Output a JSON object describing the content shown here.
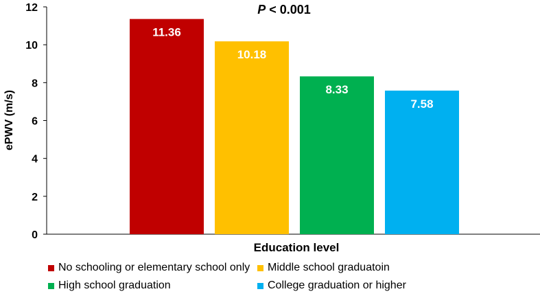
{
  "chart_data": {
    "type": "bar",
    "title": "P < 0.001",
    "title_parts": {
      "italic": "P",
      "rest": " < 0.001"
    },
    "xlabel": "Education level",
    "ylabel": "ePWV (m/s)",
    "ylim": [
      0,
      12
    ],
    "yticks": [
      "0",
      "2",
      "4",
      "6",
      "8",
      "10",
      "12"
    ],
    "grid": false,
    "legend_position": "bottom",
    "categories": [
      "No schooling or elementary school only",
      "Middle school graduatoin",
      "High school graduation",
      "College graduation or higher"
    ],
    "values": [
      11.36,
      10.18,
      8.33,
      7.58
    ],
    "data_labels": [
      "11.36",
      "10.18",
      "8.33",
      "7.58"
    ],
    "colors": [
      "#c00000",
      "#ffc000",
      "#00b050",
      "#00b0f0"
    ]
  }
}
